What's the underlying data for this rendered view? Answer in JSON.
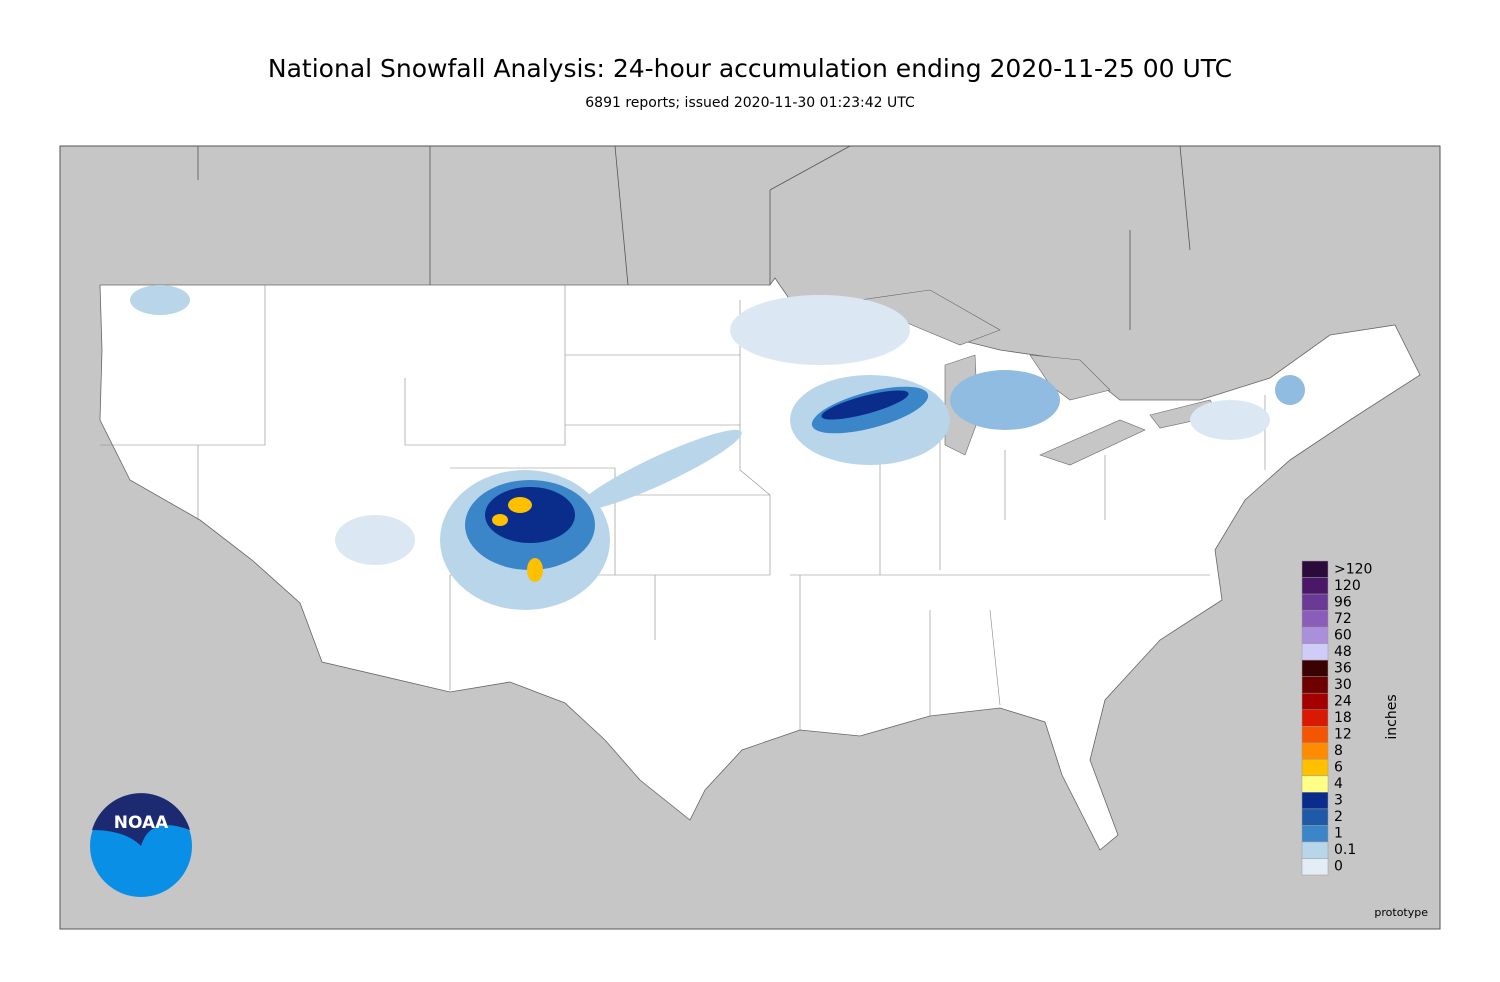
{
  "header": {
    "title": "National Snowfall Analysis: 24-hour accumulation ending 2020-11-25 00 UTC",
    "subtitle": "6891 reports; issued 2020-11-30 01:23:42 UTC"
  },
  "legend": {
    "title": "inches",
    "items": [
      {
        "label": ">120",
        "color": "#2a0b3c"
      },
      {
        "label": "120",
        "color": "#4b1868"
      },
      {
        "label": "96",
        "color": "#6b3a96"
      },
      {
        "label": "72",
        "color": "#8b5cb9"
      },
      {
        "label": "60",
        "color": "#ab8fdb"
      },
      {
        "label": "48",
        "color": "#cfccf7"
      },
      {
        "label": "36",
        "color": "#3a0202"
      },
      {
        "label": "30",
        "color": "#6e0000"
      },
      {
        "label": "24",
        "color": "#a50000"
      },
      {
        "label": "18",
        "color": "#d81a00"
      },
      {
        "label": "12",
        "color": "#f45500"
      },
      {
        "label": "8",
        "color": "#ff8c00"
      },
      {
        "label": "6",
        "color": "#ffc000"
      },
      {
        "label": "4",
        "color": "#ffff88"
      },
      {
        "label": "3",
        "color": "#0a2d8c"
      },
      {
        "label": "2",
        "color": "#1e5aa8"
      },
      {
        "label": "1",
        "color": "#3a86c8"
      },
      {
        "label": "0.1",
        "color": "#b9d5ea"
      },
      {
        "label": "0",
        "color": "#e3edf6"
      }
    ]
  },
  "logo": {
    "text": "NOAA"
  },
  "footer": {
    "note": "prototype"
  }
}
